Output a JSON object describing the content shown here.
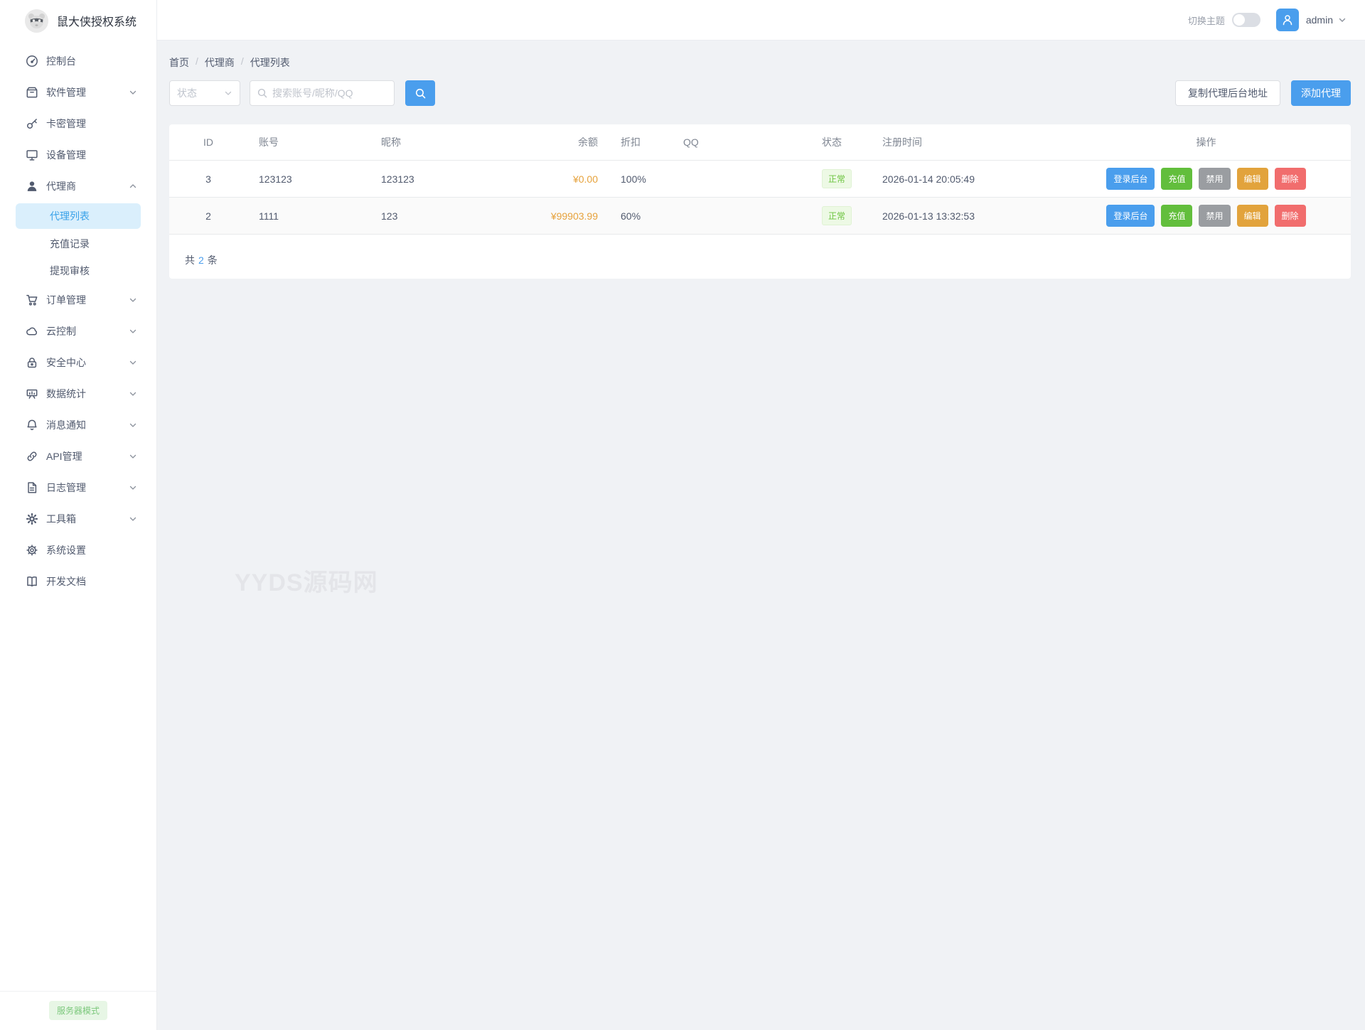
{
  "app": {
    "title": "鼠大侠授权系统"
  },
  "topbar": {
    "theme_label": "切换主题",
    "username": "admin"
  },
  "sidebar": {
    "menu": [
      {
        "name": "dashboard",
        "label": "控制台",
        "icon": "dashboard-icon",
        "expandable": false
      },
      {
        "name": "software-mgmt",
        "label": "软件管理",
        "icon": "package-icon",
        "expandable": true
      },
      {
        "name": "card-key-mgmt",
        "label": "卡密管理",
        "icon": "key-icon",
        "expandable": false
      },
      {
        "name": "device-mgmt",
        "label": "设备管理",
        "icon": "monitor-icon",
        "expandable": false
      },
      {
        "name": "agents",
        "label": "代理商",
        "icon": "user-icon",
        "expandable": true,
        "expanded": true,
        "children": [
          {
            "name": "agent-list",
            "label": "代理列表",
            "active": true
          },
          {
            "name": "recharge-record",
            "label": "充值记录",
            "active": false
          },
          {
            "name": "withdraw-review",
            "label": "提现审核",
            "active": false
          }
        ]
      },
      {
        "name": "order-mgmt",
        "label": "订单管理",
        "icon": "cart-icon",
        "expandable": true
      },
      {
        "name": "cloud-control",
        "label": "云控制",
        "icon": "cloud-icon",
        "expandable": true
      },
      {
        "name": "security-center",
        "label": "安全中心",
        "icon": "lock-icon",
        "expandable": true
      },
      {
        "name": "data-stats",
        "label": "数据统计",
        "icon": "chart-icon",
        "expandable": true
      },
      {
        "name": "notifications",
        "label": "消息通知",
        "icon": "bell-icon",
        "expandable": true
      },
      {
        "name": "api-mgmt",
        "label": "API管理",
        "icon": "link-icon",
        "expandable": true
      },
      {
        "name": "log-mgmt",
        "label": "日志管理",
        "icon": "file-icon",
        "expandable": true
      },
      {
        "name": "toolbox",
        "label": "工具箱",
        "icon": "toolbox-icon",
        "expandable": true
      },
      {
        "name": "system-settings",
        "label": "系统设置",
        "icon": "gear-icon",
        "expandable": false
      },
      {
        "name": "dev-docs",
        "label": "开发文档",
        "icon": "book-icon",
        "expandable": false
      }
    ],
    "footer_badge": "服务器模式"
  },
  "breadcrumb": {
    "items": [
      "首页",
      "代理商",
      "代理列表"
    ],
    "separator": "/"
  },
  "toolbar": {
    "status_select": "状态",
    "search_placeholder": "搜索账号/昵称/QQ",
    "copy_button": "复制代理后台地址",
    "add_button": "添加代理"
  },
  "table": {
    "columns": [
      "ID",
      "账号",
      "昵称",
      "余额",
      "折扣",
      "QQ",
      "状态",
      "注册时间",
      "操作"
    ],
    "rows": [
      {
        "id": "3",
        "account": "123123",
        "nickname": "123123",
        "balance": "¥0.00",
        "discount": "100%",
        "qq": "",
        "status": "正常",
        "registered": "2026-01-14 20:05:49"
      },
      {
        "id": "2",
        "account": "1111",
        "nickname": "123",
        "balance": "¥99903.99",
        "discount": "60%",
        "qq": "",
        "status": "正常",
        "registered": "2026-01-13 13:32:53"
      }
    ],
    "row_actions": [
      {
        "name": "login-backend",
        "label": "登录后台",
        "color": "#4a9eed"
      },
      {
        "name": "recharge",
        "label": "充值",
        "color": "#62be3c"
      },
      {
        "name": "disable",
        "label": "禁用",
        "color": "#9a9da1"
      },
      {
        "name": "edit",
        "label": "编辑",
        "color": "#e2a33c"
      },
      {
        "name": "delete",
        "label": "删除",
        "color": "#f16d6d"
      }
    ],
    "summary": {
      "prefix": "共",
      "count": "2",
      "suffix": "条"
    }
  },
  "watermark": "YYDS源码网",
  "colors": {
    "primary": "#4a9eed",
    "balance_text": "#e6a23c",
    "status_ok_text": "#6cc43e",
    "status_ok_bg": "#edf9e5",
    "active_menu_bg": "#daeffc",
    "active_menu_text": "#39a2e9"
  }
}
